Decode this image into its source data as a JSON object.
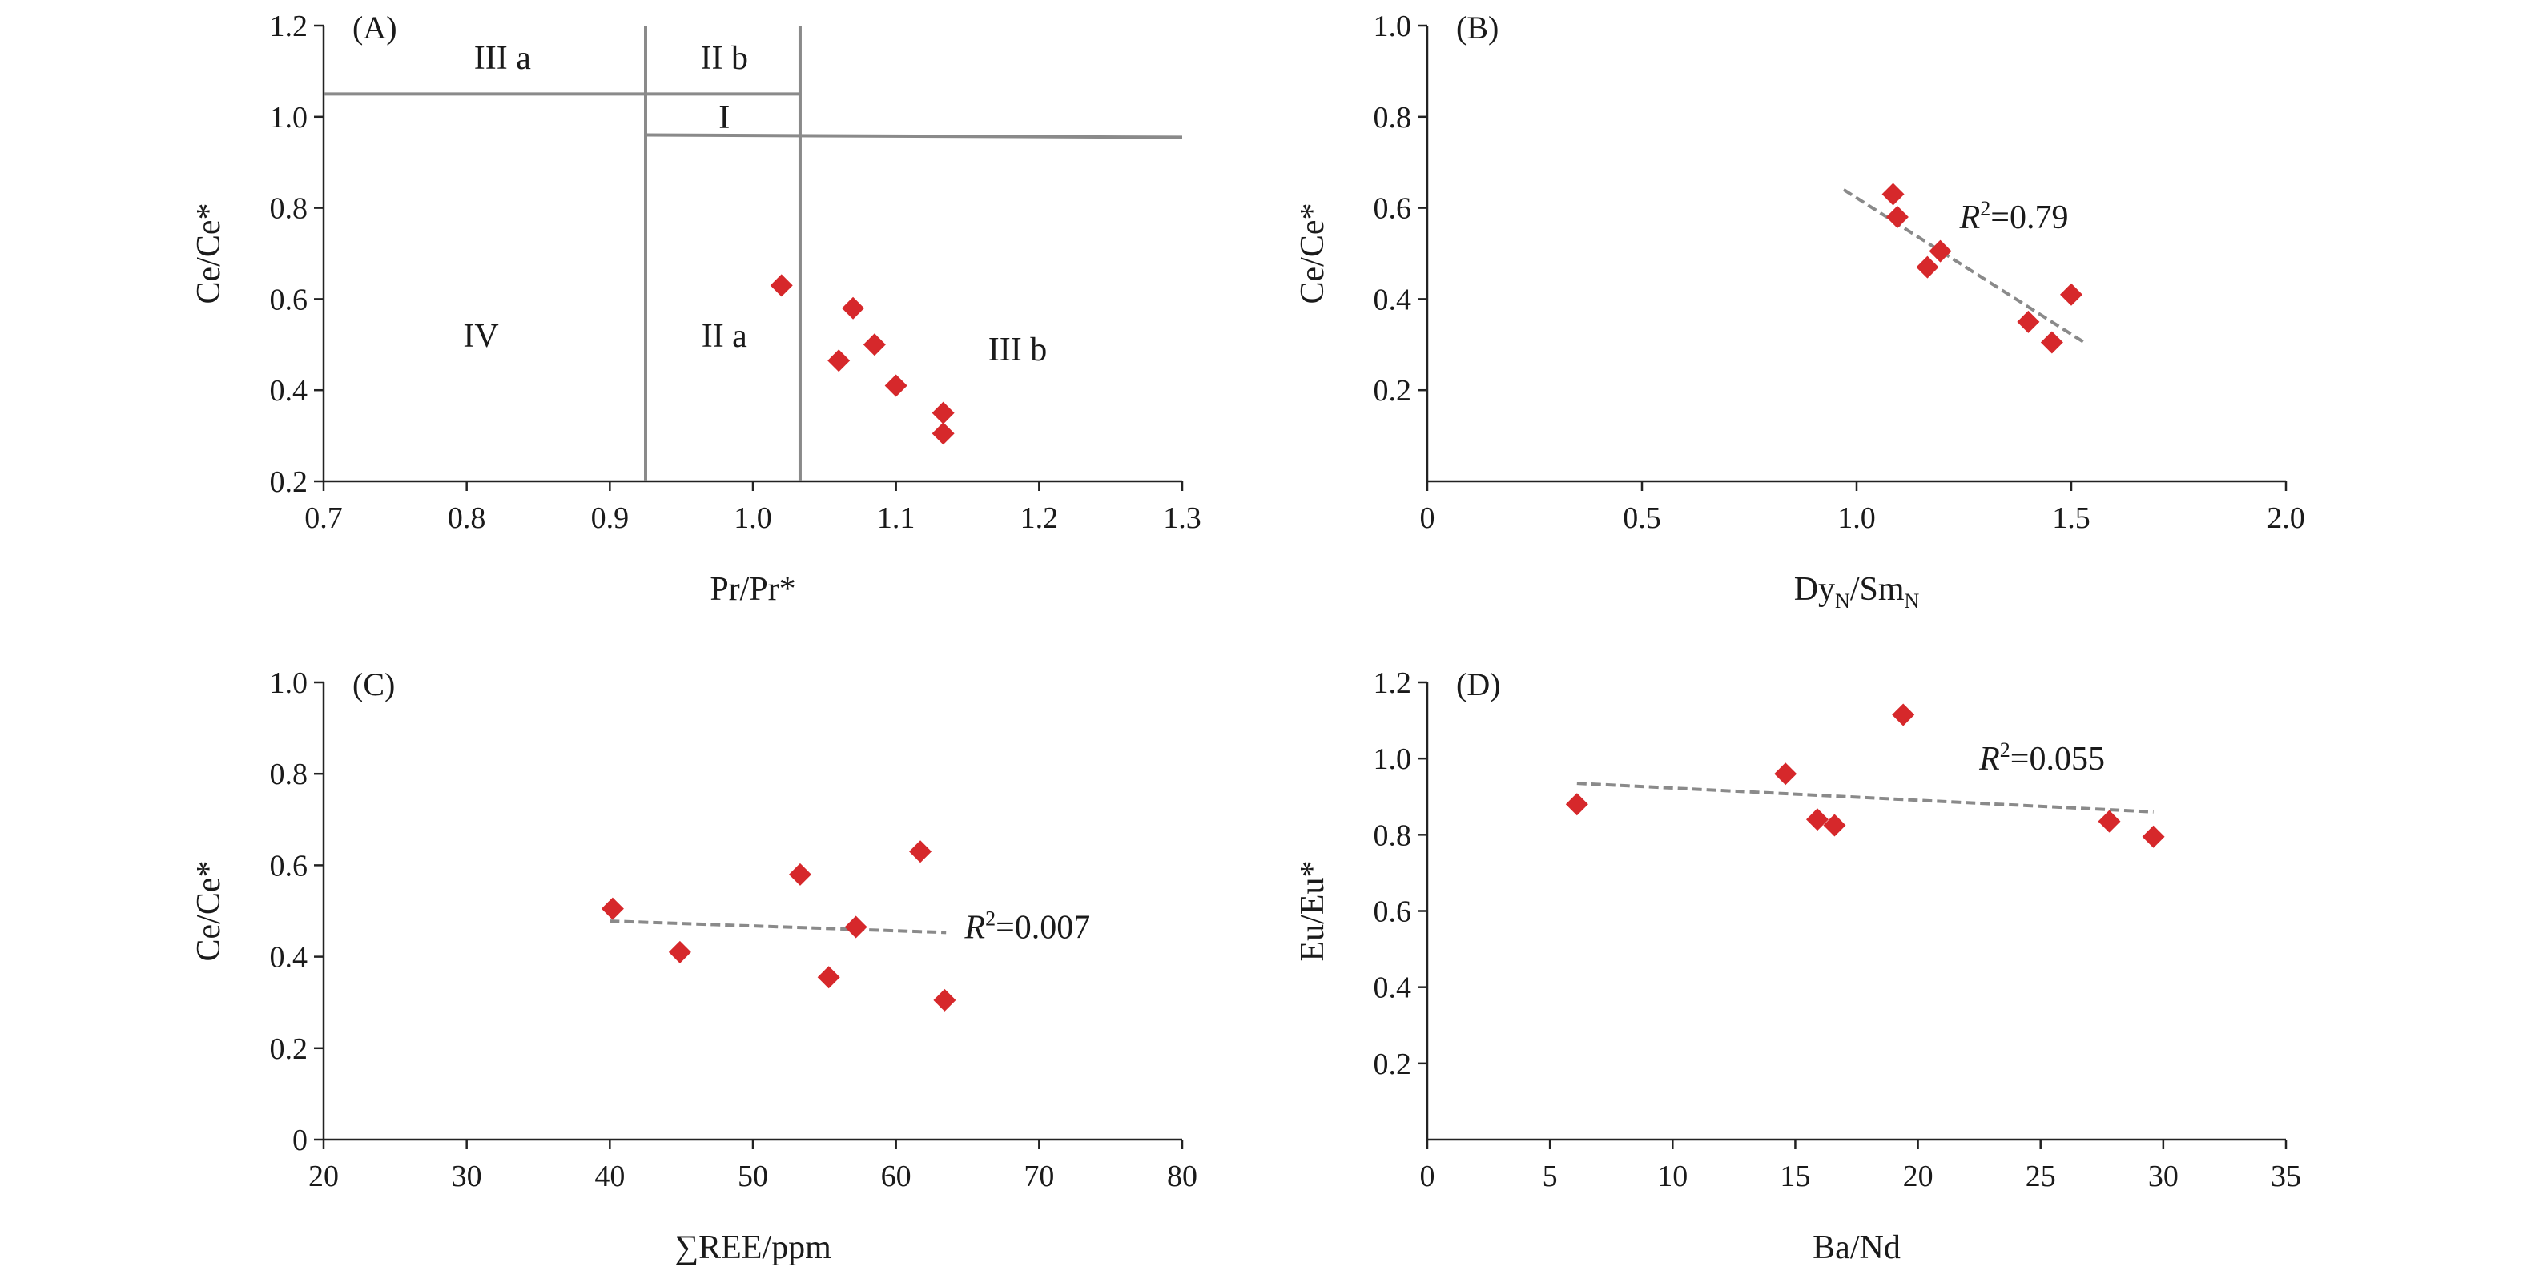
{
  "chart_data": [
    {
      "id": "A",
      "type": "scatter",
      "panel_label": "(A)",
      "xlabel": "Pr/Pr*",
      "ylabel": "Ce/Ce*",
      "xlim": [
        0.7,
        1.3
      ],
      "ylim": [
        0.2,
        1.2
      ],
      "xticks": [
        0.7,
        0.8,
        0.9,
        1.0,
        1.1,
        1.2,
        1.3
      ],
      "xtick_labels": [
        "0.7",
        "0.8",
        "0.9",
        "1.0",
        "1.1",
        "1.2",
        "1.3"
      ],
      "yticks": [
        0.2,
        0.4,
        0.6,
        0.8,
        1.0,
        1.2
      ],
      "ytick_labels": [
        "0.2",
        "0.4",
        "0.6",
        "0.8",
        "1.0",
        "1.2"
      ],
      "points": [
        {
          "x": 1.02,
          "y": 0.63
        },
        {
          "x": 1.07,
          "y": 0.58
        },
        {
          "x": 1.085,
          "y": 0.5
        },
        {
          "x": 1.06,
          "y": 0.465
        },
        {
          "x": 1.1,
          "y": 0.41
        },
        {
          "x": 1.133,
          "y": 0.35
        },
        {
          "x": 1.133,
          "y": 0.305
        }
      ],
      "boundaries": [
        {
          "x1": 0.7,
          "y1": 1.05,
          "x2": 1.033,
          "y2": 1.05
        },
        {
          "x1": 0.925,
          "y1": 0.96,
          "x2": 1.3,
          "y2": 0.955
        },
        {
          "x1": 0.925,
          "y1": 0.2,
          "x2": 0.925,
          "y2": 1.2
        },
        {
          "x1": 1.033,
          "y1": 0.2,
          "x2": 1.033,
          "y2": 1.2
        }
      ],
      "region_labels": [
        {
          "text": "III a",
          "x": 0.825,
          "y": 1.13
        },
        {
          "text": "II b",
          "x": 0.98,
          "y": 1.13
        },
        {
          "text": "I",
          "x": 0.98,
          "y": 1.0
        },
        {
          "text": "IV",
          "x": 0.81,
          "y": 0.52
        },
        {
          "text": "II a",
          "x": 0.98,
          "y": 0.52
        },
        {
          "text": "III b",
          "x": 1.185,
          "y": 0.49
        }
      ]
    },
    {
      "id": "B",
      "type": "scatter",
      "panel_label": "(B)",
      "xlabel": "Dy",
      "xlabel_sub": "N",
      "xlabel_mid": "/Sm",
      "xlabel_sub2": "N",
      "ylabel": "Ce/Ce*",
      "xlim": [
        0,
        2.0
      ],
      "ylim": [
        0,
        1.0
      ],
      "xticks": [
        0,
        0.5,
        1.0,
        1.5,
        2.0
      ],
      "xtick_labels": [
        "0",
        "0.5",
        "1.0",
        "1.5",
        "2.0"
      ],
      "yticks": [
        0.2,
        0.4,
        0.6,
        0.8,
        1.0
      ],
      "ytick_labels": [
        "0.2",
        "0.4",
        "0.6",
        "0.8",
        "1.0"
      ],
      "points": [
        {
          "x": 1.085,
          "y": 0.63
        },
        {
          "x": 1.095,
          "y": 0.58
        },
        {
          "x": 1.195,
          "y": 0.505
        },
        {
          "x": 1.165,
          "y": 0.47
        },
        {
          "x": 1.5,
          "y": 0.41
        },
        {
          "x": 1.4,
          "y": 0.35
        },
        {
          "x": 1.455,
          "y": 0.305
        }
      ],
      "trendline": {
        "x1": 0.97,
        "y1": 0.64,
        "x2": 1.53,
        "y2": 0.305
      },
      "r2_var": "R",
      "r2_sup": "2",
      "r2_value": "=0.79",
      "r2_pos": {
        "x": 1.24,
        "y": 0.58
      }
    },
    {
      "id": "C",
      "type": "scatter",
      "panel_label": "(C)",
      "xlabel": "∑REE/ppm",
      "ylabel": "Ce/Ce*",
      "xlim": [
        20,
        80
      ],
      "ylim": [
        0,
        1.0
      ],
      "xticks": [
        20,
        30,
        40,
        50,
        60,
        70,
        80
      ],
      "xtick_labels": [
        "20",
        "30",
        "40",
        "50",
        "60",
        "70",
        "80"
      ],
      "yticks": [
        0,
        0.2,
        0.4,
        0.6,
        0.8,
        1.0
      ],
      "ytick_labels": [
        "0",
        "0.2",
        "0.4",
        "0.6",
        "0.8",
        "1.0"
      ],
      "points": [
        {
          "x": 40.2,
          "y": 0.505
        },
        {
          "x": 44.9,
          "y": 0.41
        },
        {
          "x": 53.3,
          "y": 0.58
        },
        {
          "x": 55.3,
          "y": 0.355
        },
        {
          "x": 57.2,
          "y": 0.465
        },
        {
          "x": 61.7,
          "y": 0.63
        },
        {
          "x": 63.4,
          "y": 0.305
        }
      ],
      "trendline": {
        "x1": 40,
        "y1": 0.478,
        "x2": 63.5,
        "y2": 0.453
      },
      "r2_var": "R",
      "r2_sup": "2",
      "r2_value": "=0.007",
      "r2_pos": {
        "x": 64.8,
        "y": 0.465
      }
    },
    {
      "id": "D",
      "type": "scatter",
      "panel_label": "(D)",
      "xlabel": "Ba/Nd",
      "ylabel": "Eu/Eu*",
      "xlim": [
        0,
        35
      ],
      "ylim": [
        0,
        1.2
      ],
      "xticks": [
        0,
        5,
        10,
        15,
        20,
        25,
        30,
        35
      ],
      "xtick_labels": [
        "0",
        "5",
        "10",
        "15",
        "20",
        "25",
        "30",
        "35"
      ],
      "yticks": [
        0.2,
        0.4,
        0.6,
        0.8,
        1.0,
        1.2
      ],
      "ytick_labels": [
        "0.2",
        "0.4",
        "0.6",
        "0.8",
        "1.0",
        "1.2"
      ],
      "points": [
        {
          "x": 6.1,
          "y": 0.88
        },
        {
          "x": 14.6,
          "y": 0.96
        },
        {
          "x": 15.9,
          "y": 0.84
        },
        {
          "x": 16.6,
          "y": 0.825
        },
        {
          "x": 19.4,
          "y": 1.115
        },
        {
          "x": 27.8,
          "y": 0.835
        },
        {
          "x": 29.6,
          "y": 0.795
        }
      ],
      "trendline": {
        "x1": 6.1,
        "y1": 0.935,
        "x2": 29.6,
        "y2": 0.86
      },
      "r2_var": "R",
      "r2_sup": "2",
      "r2_value": "=0.055",
      "r2_pos": {
        "x": 22.5,
        "y": 1.0
      }
    }
  ]
}
